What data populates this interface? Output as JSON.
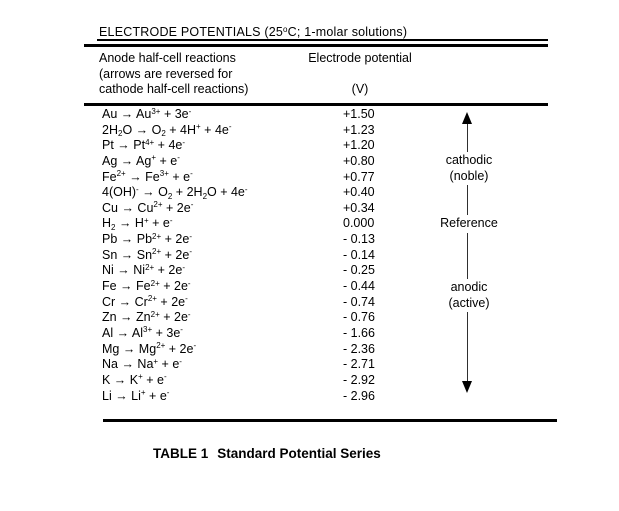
{
  "page": {
    "background": "#ffffff",
    "text_color": "#000000"
  },
  "table": {
    "title": "ELECTRODE POTENTIALS (25^o^C; 1-molar solutions)",
    "header": {
      "col_reactions_line1": "Anode half-cell reactions",
      "col_reactions_line2": "(arrows are reversed for",
      "col_reactions_line3": "cathode half-cell reactions)",
      "col_potential_label": "Electrode potential",
      "col_potential_unit": "(V)"
    },
    "rows": [
      {
        "reaction": "Au → Au^3+^ + 3e^-^",
        "potential": "+1.50"
      },
      {
        "reaction": "2H~2~O → O~2~ + 4H^+^ + 4e^-^",
        "potential": "+1.23"
      },
      {
        "reaction": "Pt → Pt^4+^ + 4e^-^",
        "potential": "+1.20"
      },
      {
        "reaction": "Ag → Ag^+^ + e^-^",
        "potential": "+0.80"
      },
      {
        "reaction": "Fe^2+^ → Fe^3+^ + e^-^",
        "potential": "+0.77"
      },
      {
        "reaction": "4(OH)^-^ → O~2~ + 2H~2~O + 4e^-^",
        "potential": "+0.40"
      },
      {
        "reaction": "Cu → Cu^2+^ + 2e^-^",
        "potential": "+0.34"
      },
      {
        "reaction": "H~2~ → H^+^ + e^-^",
        "potential": "0.000"
      },
      {
        "reaction": "Pb → Pb^2+^ + 2e^-^",
        "potential": "- 0.13"
      },
      {
        "reaction": "Sn → Sn^2+^ + 2e^-^",
        "potential": "- 0.14"
      },
      {
        "reaction": "Ni → Ni^2+^ + 2e^-^",
        "potential": "- 0.25"
      },
      {
        "reaction": "Fe → Fe^2+^ + 2e^-^",
        "potential": "- 0.44"
      },
      {
        "reaction": "Cr → Cr^2+^ + 2e^-^",
        "potential": "- 0.74"
      },
      {
        "reaction": "Zn → Zn^2+^ + 2e^-^",
        "potential": "- 0.76"
      },
      {
        "reaction": "Al → Al^3+^ + 3e^-^",
        "potential": "- 1.66"
      },
      {
        "reaction": "Mg → Mg^2+^ + 2e^-^",
        "potential": "- 2.36"
      },
      {
        "reaction": "Na → Na^+^ + e^-^",
        "potential": "- 2.71"
      },
      {
        "reaction": "K → K^+^ + e^-^",
        "potential": "- 2.92"
      },
      {
        "reaction": "Li → Li^+^ + e^-^",
        "potential": "- 2.96"
      }
    ],
    "annotation": {
      "cathodic_line1": "cathodic",
      "cathodic_line2": "(noble)",
      "reference": "Reference",
      "anodic_line1": "anodic",
      "anodic_line2": "(active)"
    },
    "caption": {
      "label": "TABLE 1",
      "text": "Standard Potential Series"
    }
  }
}
